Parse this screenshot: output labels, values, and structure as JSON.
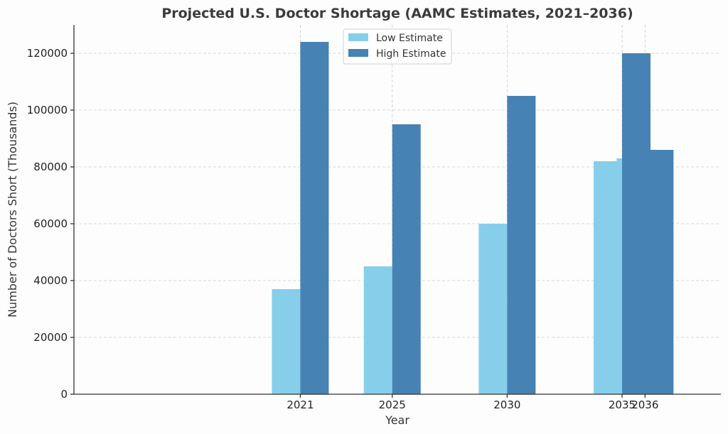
{
  "chart_data": {
    "type": "bar",
    "title": "Projected U.S. Doctor Shortage (AAMC Estimates, 2021–2036)",
    "xlabel": "Year",
    "ylabel": "Number of Doctors Short (Thousands)",
    "x_range": [
      2011.15,
      2039.3
    ],
    "ylim": [
      0,
      130000
    ],
    "yticks": [
      0,
      20000,
      40000,
      60000,
      80000,
      100000,
      120000
    ],
    "xticks": [
      2021,
      2025,
      2030,
      2035,
      2036
    ],
    "grid": true,
    "legend_position": "top-center",
    "series": [
      {
        "name": "Low Estimate",
        "color": "#87ceeb",
        "points": [
          {
            "x": 2021,
            "y": 37000
          },
          {
            "x": 2025,
            "y": 45000
          },
          {
            "x": 2030,
            "y": 60000
          },
          {
            "x": 2035,
            "y": 82000
          },
          {
            "x": 2036,
            "y": 83000
          }
        ]
      },
      {
        "name": "High Estimate",
        "color": "#4682b4",
        "points": [
          {
            "x": 2021,
            "y": 124000
          },
          {
            "x": 2025,
            "y": 95000
          },
          {
            "x": 2030,
            "y": 105000
          },
          {
            "x": 2035,
            "y": 120000
          },
          {
            "x": 2036,
            "y": 86000
          }
        ]
      }
    ]
  }
}
